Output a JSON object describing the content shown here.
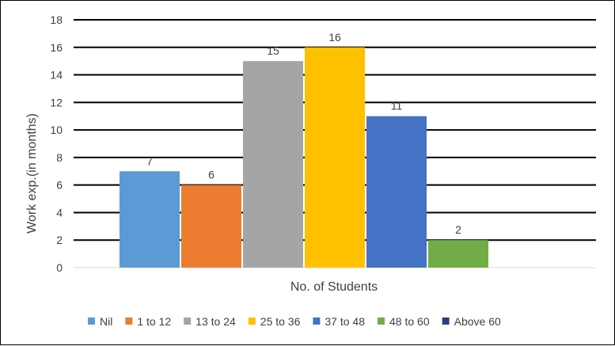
{
  "chart_data": {
    "type": "bar",
    "title": "",
    "xlabel": "No. of Students",
    "ylabel": "Work exp.(in months)",
    "ylim": [
      0,
      18
    ],
    "yticks": [
      0,
      2,
      4,
      6,
      8,
      10,
      12,
      14,
      16,
      18
    ],
    "grid": true,
    "legend_position": "bottom",
    "series": [
      {
        "name": "Nil",
        "value": 7,
        "color": "#5B9BD5"
      },
      {
        "name": "1 to 12",
        "value": 6,
        "color": "#ED7D31"
      },
      {
        "name": "13 to 24",
        "value": 15,
        "color": "#A5A5A5"
      },
      {
        "name": "25 to 36",
        "value": 16,
        "color": "#FFC000"
      },
      {
        "name": "37 to 48",
        "value": 11,
        "color": "#4472C4"
      },
      {
        "name": "48 to 60",
        "value": 2,
        "color": "#70AD47"
      },
      {
        "name": "Above 60",
        "value": 0,
        "color": "#264478"
      }
    ]
  }
}
